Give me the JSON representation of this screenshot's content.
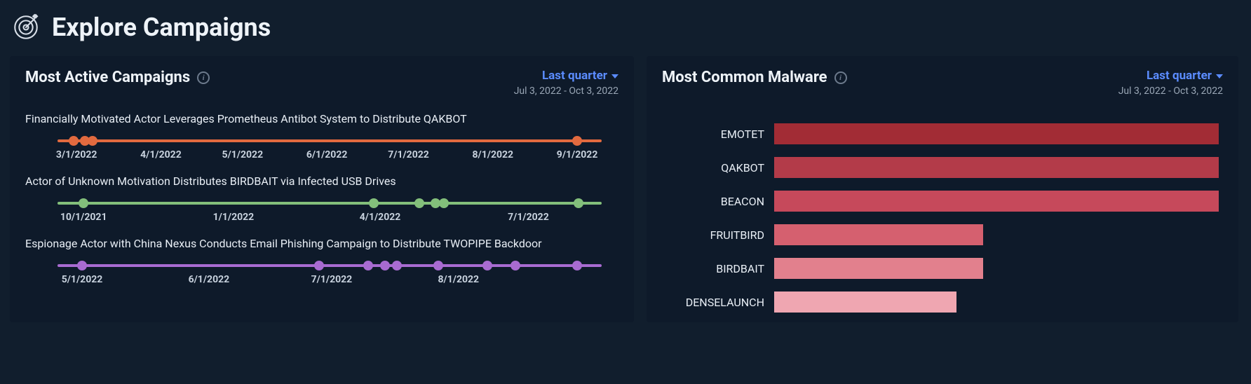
{
  "header": {
    "title": "Explore Campaigns",
    "icon": "target-icon"
  },
  "panels": {
    "active": {
      "title": "Most Active Campaigns",
      "range_label": "Last quarter",
      "range_dates": "Jul 3, 2022 - Oct 3, 2022",
      "campaigns": [
        {
          "title": "Financially Motivated Actor Leverages Prometheus Antibot System to Distribute QAKBOT",
          "color": "#e26a3f",
          "domain": [
            "2022-02-22",
            "2022-09-10"
          ],
          "points": [
            "2022-02-28",
            "2022-03-04",
            "2022-03-07",
            "2022-09-01"
          ],
          "ticks": [
            "3/1/2022",
            "4/1/2022",
            "5/1/2022",
            "6/1/2022",
            "7/1/2022",
            "8/1/2022",
            "9/1/2022"
          ],
          "tick_dates": [
            "2022-03-01",
            "2022-04-01",
            "2022-05-01",
            "2022-06-01",
            "2022-07-01",
            "2022-08-01",
            "2022-09-01"
          ]
        },
        {
          "title": "Actor of Unknown Motivation Distributes BIRDBAIT via Infected USB Drives",
          "color": "#83bf7b",
          "domain": [
            "2021-09-15",
            "2022-08-15"
          ],
          "points": [
            "2021-10-01",
            "2022-03-28",
            "2022-04-25",
            "2022-05-05",
            "2022-05-10",
            "2022-08-01"
          ],
          "ticks": [
            "10/1/2021",
            "1/1/2022",
            "4/1/2022",
            "7/1/2022"
          ],
          "tick_dates": [
            "2021-10-01",
            "2022-01-01",
            "2022-04-01",
            "2022-07-01"
          ]
        },
        {
          "title": "Espionage Actor with China Nexus Conducts Email Phishing Campaign to Distribute TWOPIPE Backdoor",
          "color": "#a86bd1",
          "domain": [
            "2022-04-25",
            "2022-09-05"
          ],
          "points": [
            "2022-05-01",
            "2022-06-28",
            "2022-07-10",
            "2022-07-14",
            "2022-07-17",
            "2022-07-27",
            "2022-08-08",
            "2022-08-15",
            "2022-08-30"
          ],
          "ticks": [
            "5/1/2022",
            "6/1/2022",
            "7/1/2022",
            "8/1/2022"
          ],
          "tick_dates": [
            "2022-05-01",
            "2022-06-01",
            "2022-07-01",
            "2022-08-01"
          ]
        }
      ]
    },
    "malware": {
      "title": "Most Common Malware",
      "range_label": "Last quarter",
      "range_dates": "Jul 3, 2022 - Oct 3, 2022",
      "max_value": 100,
      "bars": [
        {
          "label": "EMOTET",
          "value": 100,
          "color": "#a22c35"
        },
        {
          "label": "QAKBOT",
          "value": 100,
          "color": "#b33b49"
        },
        {
          "label": "BEACON",
          "value": 100,
          "color": "#c6495b"
        },
        {
          "label": "FRUITBIRD",
          "value": 47,
          "color": "#d5606f"
        },
        {
          "label": "BIRDBAIT",
          "value": 47,
          "color": "#e2808d"
        },
        {
          "label": "DENSELAUNCH",
          "value": 41,
          "color": "#efa6b1"
        }
      ]
    }
  },
  "colors": {
    "page_bg": "#111e2d",
    "panel_bg": "#0e1a2a",
    "text": "#e8eef5",
    "muted": "#9aa7b6",
    "link": "#5b8cff"
  }
}
